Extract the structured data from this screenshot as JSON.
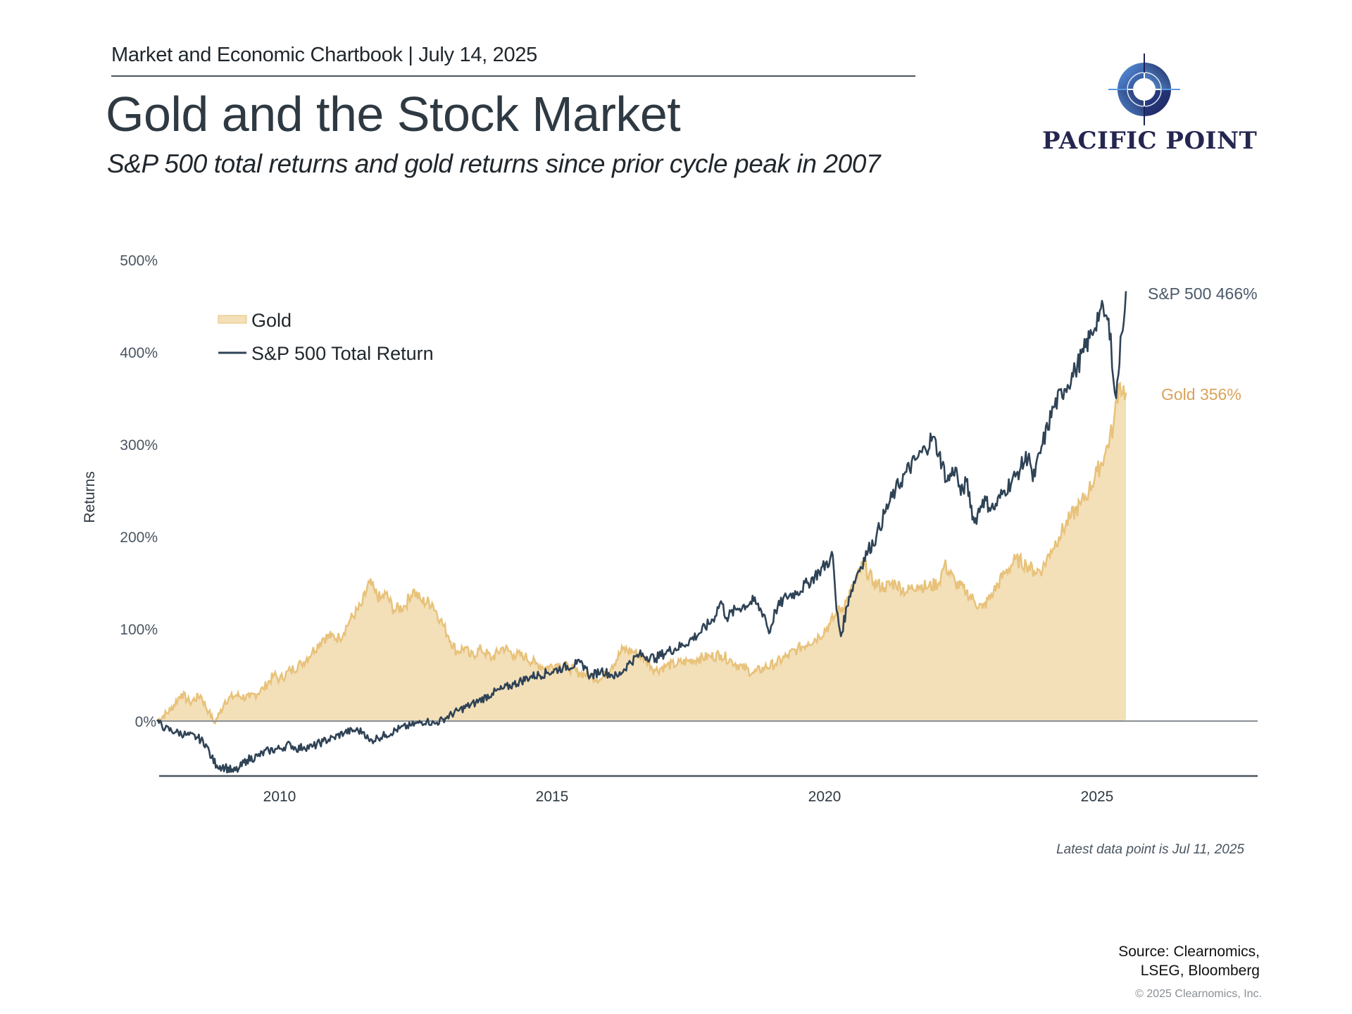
{
  "header": {
    "chartbook": "Market and Economic Chartbook | July 14, 2025",
    "title": "Gold and the Stock Market",
    "subtitle": "S&P 500 total returns and gold returns since prior cycle peak in 2007"
  },
  "logo": {
    "text": "PACIFIC POINT",
    "icon": "compass-icon",
    "colors": {
      "dark": "#252650",
      "light": "#5b9be0"
    }
  },
  "footer": {
    "latest_note": "Latest data point is Jul 11, 2025",
    "source_line1": "Source: Clearnomics,",
    "source_line2": "LSEG, Bloomberg",
    "copyright": "© 2025 Clearnomics, Inc."
  },
  "chart_data": {
    "type": "area",
    "title": "Gold and the Stock Market",
    "xlabel": "",
    "ylabel": "Returns",
    "xlim": [
      2007.75,
      2028.2
    ],
    "ylim": [
      -60,
      500
    ],
    "grid": false,
    "legend_position": "top-left",
    "x_ticks": [
      2010,
      2015,
      2020,
      2025
    ],
    "x_tick_labels": [
      "2010",
      "2015",
      "2020",
      "2025"
    ],
    "y_ticks": [
      0,
      100,
      200,
      300,
      400,
      500
    ],
    "y_tick_labels": [
      "0%",
      "100%",
      "200%",
      "300%",
      "400%",
      "500%"
    ],
    "colors": {
      "gold_line": "#e8c27a",
      "gold_fill": "#f3e0b9",
      "sp500": "#2f4356",
      "axis": "#8a9096",
      "bottom_axis": "#4a5560"
    },
    "legend": [
      {
        "name": "Gold",
        "style": "area"
      },
      {
        "name": "S&P 500 Total Return",
        "style": "line"
      }
    ],
    "annotations": [
      {
        "series": "S&P 500 Total Return",
        "text": "S&P 500 466%",
        "value": 466
      },
      {
        "series": "Gold",
        "text": "Gold 356%",
        "value": 356
      }
    ],
    "series": [
      {
        "name": "Gold",
        "x": [
          2007.75,
          2008.0,
          2008.2,
          2008.35,
          2008.55,
          2008.7,
          2008.8,
          2008.9,
          2009.0,
          2009.2,
          2009.45,
          2009.7,
          2009.9,
          2010.0,
          2010.2,
          2010.4,
          2010.6,
          2010.8,
          2010.95,
          2011.1,
          2011.3,
          2011.5,
          2011.65,
          2011.75,
          2011.85,
          2011.95,
          2012.1,
          2012.3,
          2012.45,
          2012.6,
          2012.8,
          2012.95,
          2013.1,
          2013.25,
          2013.4,
          2013.5,
          2013.7,
          2013.9,
          2014.1,
          2014.3,
          2014.5,
          2014.7,
          2014.9,
          2015.1,
          2015.3,
          2015.5,
          2015.7,
          2015.9,
          2016.1,
          2016.3,
          2016.5,
          2016.7,
          2016.9,
          2017.1,
          2017.3,
          2017.5,
          2017.7,
          2017.9,
          2018.1,
          2018.3,
          2018.5,
          2018.7,
          2018.9,
          2019.1,
          2019.3,
          2019.5,
          2019.7,
          2019.9,
          2020.1,
          2020.2,
          2020.4,
          2020.6,
          2020.7,
          2020.9,
          2021.1,
          2021.3,
          2021.5,
          2021.7,
          2021.9,
          2022.1,
          2022.2,
          2022.4,
          2022.6,
          2022.75,
          2022.9,
          2023.1,
          2023.3,
          2023.5,
          2023.7,
          2023.85,
          2024.0,
          2024.15,
          2024.3,
          2024.5,
          2024.7,
          2024.85,
          2025.0,
          2025.15,
          2025.3,
          2025.4,
          2025.53
        ],
        "values": [
          0,
          12,
          30,
          20,
          28,
          10,
          -2,
          8,
          22,
          28,
          25,
          35,
          50,
          45,
          55,
          62,
          75,
          90,
          92,
          90,
          110,
          125,
          150,
          140,
          132,
          138,
          120,
          125,
          142,
          130,
          128,
          110,
          92,
          75,
          80,
          70,
          78,
          68,
          80,
          72,
          70,
          62,
          58,
          62,
          58,
          52,
          50,
          45,
          60,
          78,
          75,
          68,
          55,
          60,
          62,
          65,
          68,
          70,
          72,
          65,
          58,
          52,
          58,
          62,
          70,
          78,
          85,
          92,
          105,
          115,
          130,
          155,
          170,
          150,
          145,
          150,
          140,
          148,
          145,
          150,
          170,
          150,
          140,
          130,
          122,
          140,
          160,
          175,
          170,
          162,
          165,
          185,
          200,
          220,
          235,
          250,
          270,
          290,
          320,
          365,
          356
        ]
      },
      {
        "name": "S&P 500 Total Return",
        "x": [
          2007.75,
          2007.9,
          2008.1,
          2008.3,
          2008.5,
          2008.65,
          2008.75,
          2008.85,
          2009.0,
          2009.15,
          2009.25,
          2009.4,
          2009.6,
          2009.8,
          2010.0,
          2010.2,
          2010.3,
          2010.45,
          2010.6,
          2010.8,
          2011.0,
          2011.2,
          2011.4,
          2011.55,
          2011.65,
          2011.8,
          2011.95,
          2012.2,
          2012.4,
          2012.55,
          2012.7,
          2012.85,
          2013.0,
          2013.3,
          2013.6,
          2013.9,
          2014.1,
          2014.3,
          2014.6,
          2014.9,
          2015.2,
          2015.45,
          2015.6,
          2015.7,
          2015.9,
          2016.1,
          2016.2,
          2016.4,
          2016.6,
          2016.9,
          2017.1,
          2017.4,
          2017.7,
          2017.95,
          2018.1,
          2018.2,
          2018.4,
          2018.7,
          2018.9,
          2018.98,
          2019.1,
          2019.3,
          2019.5,
          2019.7,
          2019.9,
          2020.1,
          2020.15,
          2020.22,
          2020.3,
          2020.45,
          2020.6,
          2020.8,
          2020.95,
          2021.1,
          2021.3,
          2021.5,
          2021.7,
          2021.85,
          2021.98,
          2022.1,
          2022.25,
          2022.4,
          2022.5,
          2022.6,
          2022.75,
          2022.9,
          2023.1,
          2023.3,
          2023.5,
          2023.6,
          2023.75,
          2023.82,
          2024.0,
          2024.2,
          2024.4,
          2024.6,
          2024.75,
          2024.9,
          2025.05,
          2025.15,
          2025.25,
          2025.3,
          2025.35,
          2025.45,
          2025.53
        ],
        "values": [
          0,
          -8,
          -12,
          -15,
          -18,
          -25,
          -40,
          -48,
          -50,
          -55,
          -52,
          -42,
          -38,
          -32,
          -30,
          -25,
          -30,
          -28,
          -28,
          -22,
          -18,
          -12,
          -10,
          -12,
          -22,
          -18,
          -15,
          -8,
          -5,
          -2,
          0,
          -3,
          2,
          12,
          20,
          30,
          35,
          40,
          48,
          52,
          58,
          62,
          60,
          48,
          55,
          50,
          48,
          62,
          72,
          68,
          75,
          82,
          95,
          110,
          130,
          112,
          122,
          130,
          115,
          95,
          120,
          135,
          140,
          150,
          162,
          175,
          180,
          120,
          92,
          135,
          160,
          185,
          200,
          225,
          250,
          270,
          285,
          295,
          308,
          290,
          260,
          275,
          245,
          260,
          215,
          240,
          230,
          250,
          265,
          275,
          290,
          260,
          300,
          340,
          360,
          380,
          400,
          420,
          445,
          440,
          420,
          370,
          350,
          420,
          466
        ]
      }
    ]
  }
}
